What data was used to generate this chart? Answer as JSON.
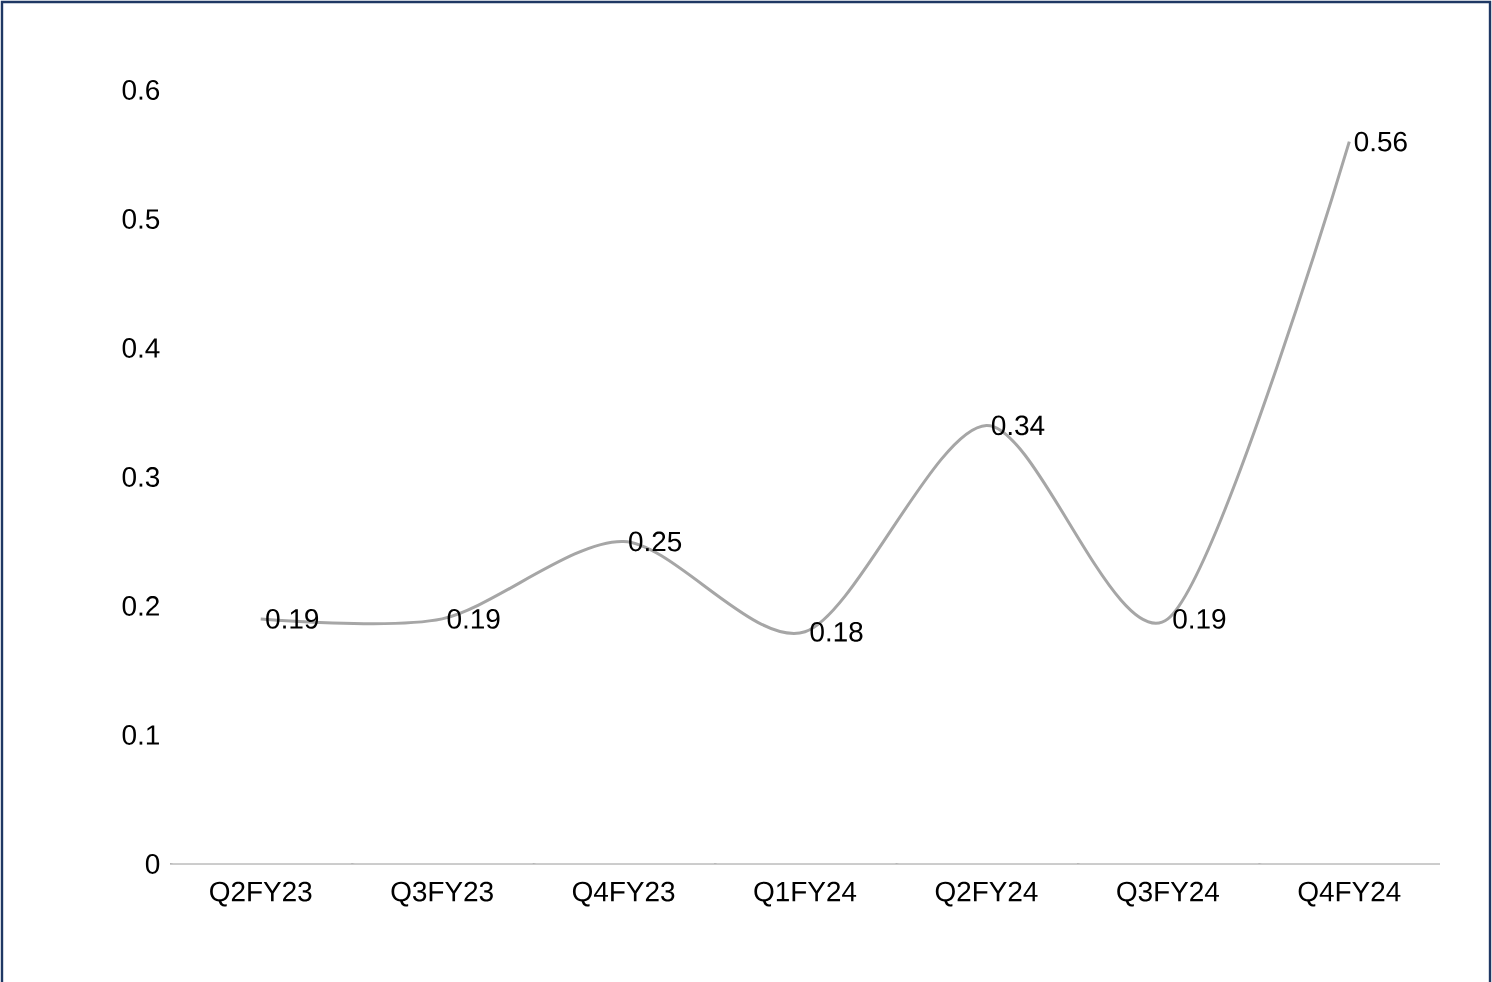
{
  "chart_data": {
    "type": "line",
    "categories": [
      "Q2FY23",
      "Q3FY23",
      "Q4FY23",
      "Q1FY24",
      "Q2FY24",
      "Q3FY24",
      "Q4FY24"
    ],
    "values": [
      0.19,
      0.19,
      0.25,
      0.18,
      0.34,
      0.19,
      0.56
    ],
    "color": "#a6a6a6",
    "ylim": [
      0,
      0.6
    ],
    "yticks": [
      0,
      0.1,
      0.2,
      0.3,
      0.4,
      0.5,
      0.6
    ],
    "data_labels": true,
    "grid": false,
    "marker": "none",
    "line_style": "solid"
  }
}
